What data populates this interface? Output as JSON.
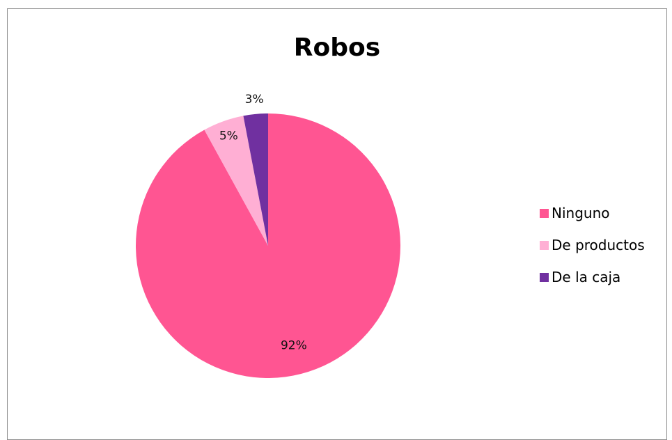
{
  "chart_data": {
    "type": "pie",
    "title": "Robos",
    "categories": [
      "Ninguno",
      "De productos",
      "De la caja"
    ],
    "values": [
      92,
      5,
      3
    ],
    "labels": [
      "92%",
      "5%",
      "3%"
    ],
    "colors": [
      "#ff5592",
      "#ffafd4",
      "#7030a0"
    ],
    "start_angle_deg": 0,
    "direction": "clockwise",
    "legend_position": "right"
  }
}
